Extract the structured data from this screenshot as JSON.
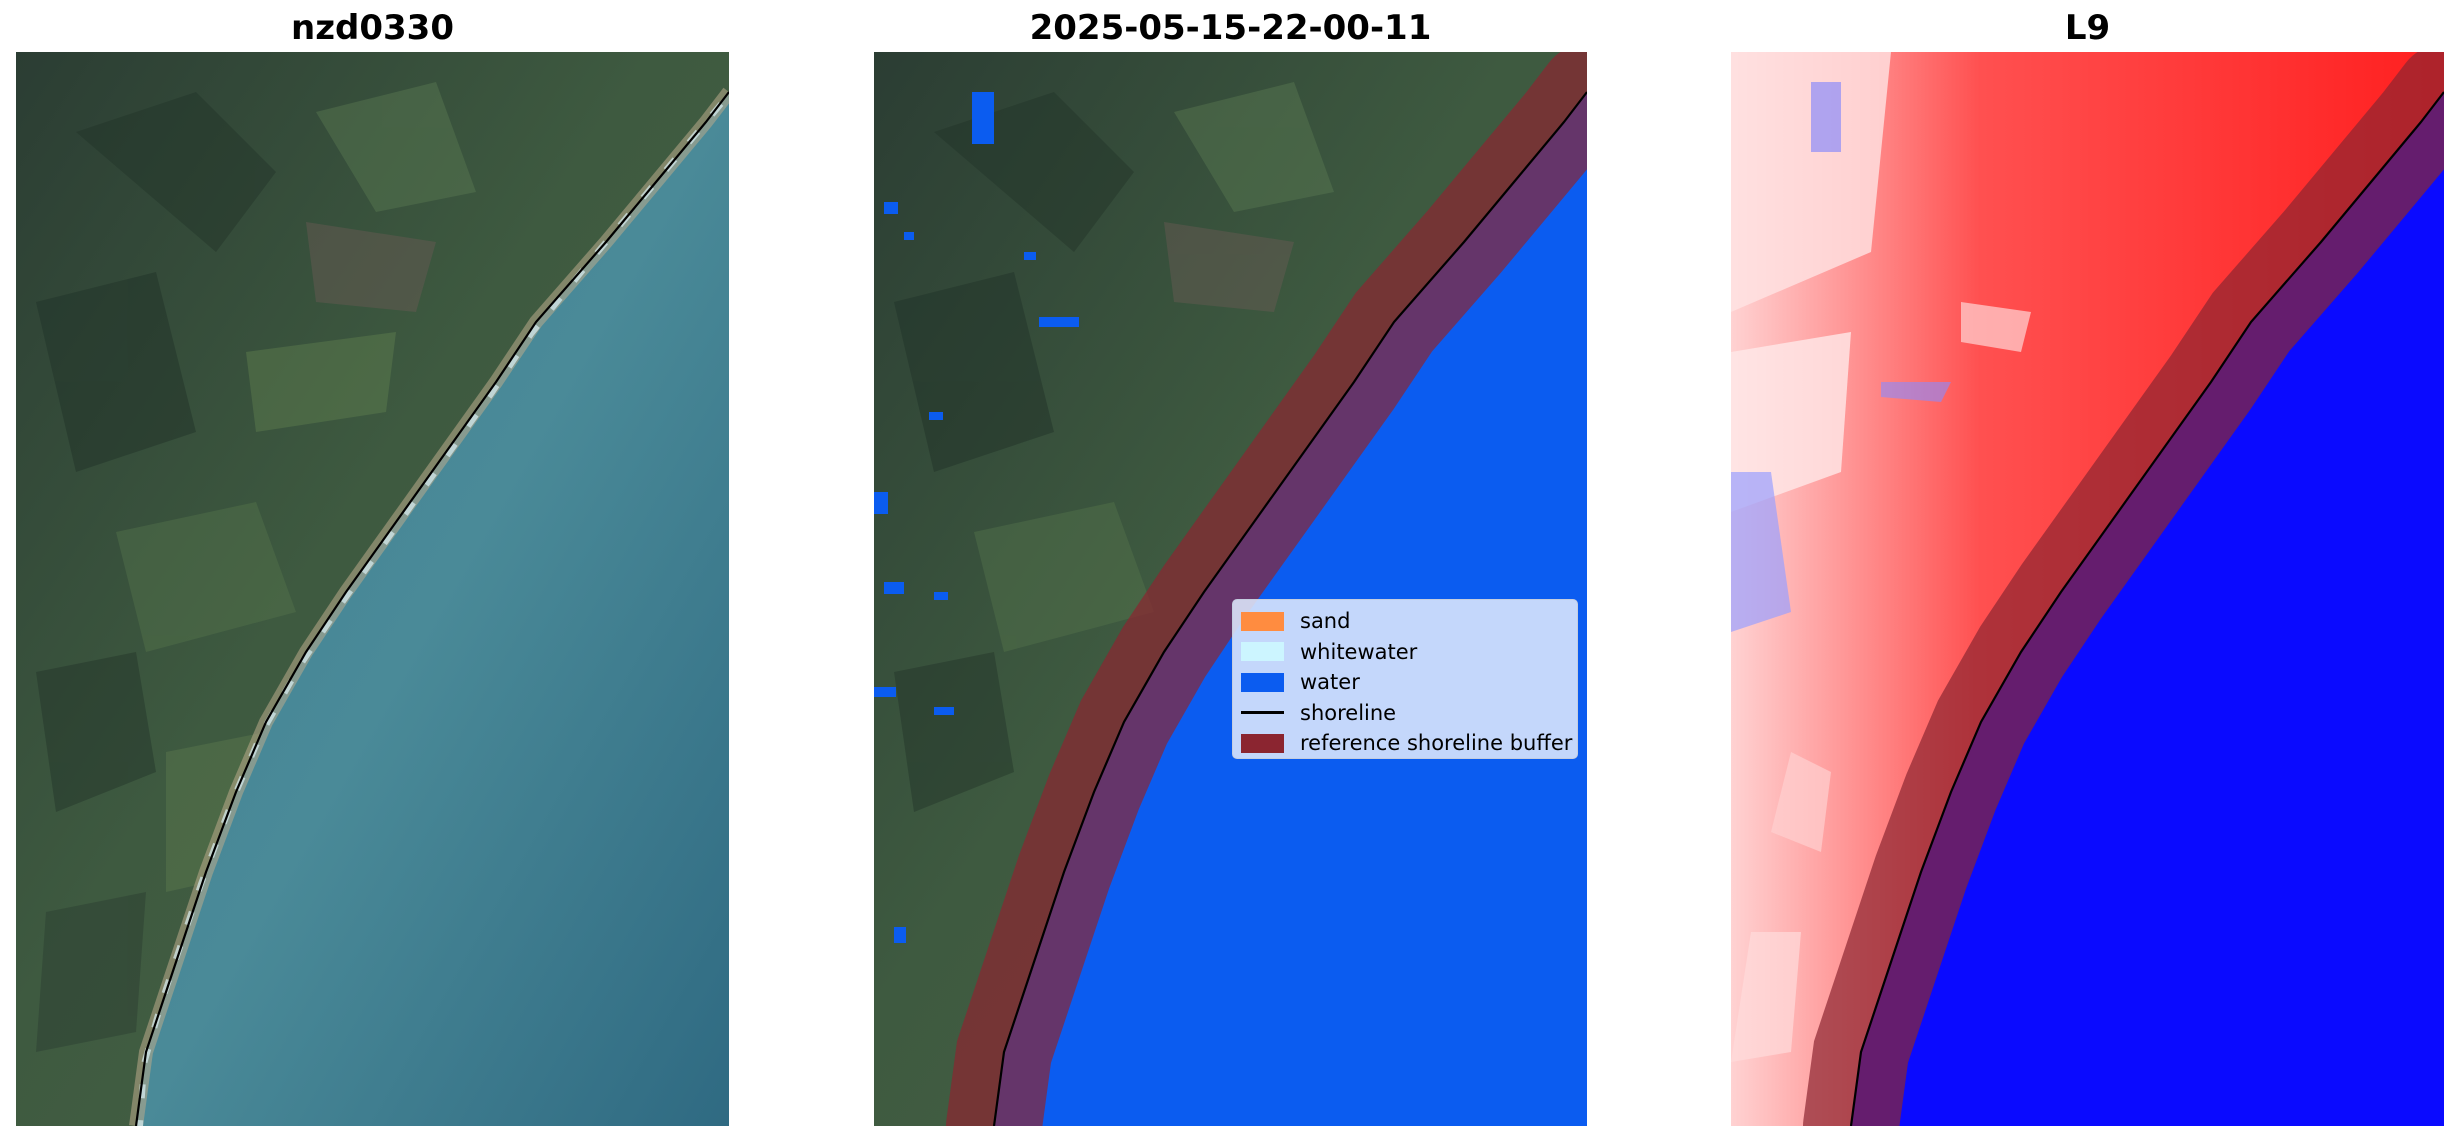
{
  "panels": [
    {
      "title": "nzd0330",
      "content": "satellite-rgb-image"
    },
    {
      "title": "2025-05-15-22-00-11",
      "content": "classified-image"
    },
    {
      "title": "L9",
      "content": "water-index-image"
    }
  ],
  "legend": {
    "items": [
      {
        "label": "sand",
        "color": "#ff8c40",
        "kind": "patch"
      },
      {
        "label": "whitewater",
        "color": "#ccf5ff",
        "kind": "patch"
      },
      {
        "label": "water",
        "color": "#0b5cf0",
        "kind": "patch"
      },
      {
        "label": "shoreline",
        "color": "#000000",
        "kind": "line"
      },
      {
        "label": "reference shoreline buffer",
        "color": "#8b2530",
        "kind": "patch"
      }
    ]
  },
  "colors": {
    "land_dark": "#2f4437",
    "land_green": "#4d6a48",
    "sea_rgb": "#3f7a8c",
    "water_class": "#0b5cf0",
    "buffer": "#7a2a5c",
    "index_land": "#ff2a2a",
    "index_water": "#0a0aff"
  }
}
